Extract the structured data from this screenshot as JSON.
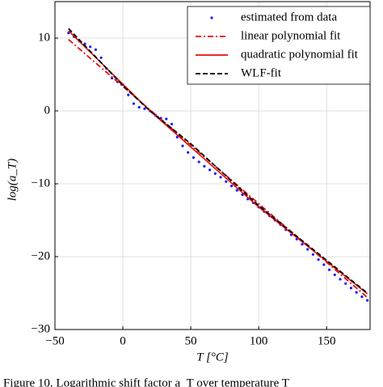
{
  "chart_data": {
    "type": "line",
    "xlabel": "T [°C]",
    "ylabel": "log(a_T)",
    "caption": "Figure 10. Logarithmic shift factor a_T over temperature T",
    "xlim": [
      -50,
      182
    ],
    "ylim": [
      -30,
      15
    ],
    "xticks": [
      {
        "value": -50,
        "label": "−50"
      },
      0,
      50,
      100,
      150
    ],
    "yticks": [
      {
        "value": -30,
        "label": "−30"
      },
      {
        "value": -20,
        "label": "−20"
      },
      {
        "value": -10,
        "label": "−10"
      },
      0,
      10
    ],
    "grid": true,
    "legend": "upper right",
    "series": [
      {
        "name": "estimated from data",
        "color": "#1a1aff",
        "style": "dots",
        "x": [
          -40,
          -36,
          -32,
          -28,
          -24,
          -20,
          -16,
          -12,
          -8,
          -4,
          0,
          4,
          8,
          12,
          16,
          20,
          24,
          28,
          32,
          36,
          40,
          44,
          48,
          52,
          56,
          60,
          64,
          68,
          72,
          76,
          80,
          84,
          88,
          92,
          96,
          100,
          104,
          108,
          112,
          116,
          120,
          124,
          128,
          132,
          136,
          140,
          144,
          148,
          152,
          156,
          160,
          164,
          168,
          172,
          176,
          180
        ],
        "values": [
          10.7,
          10.2,
          9.6,
          9.2,
          8.8,
          8.4,
          7.3,
          5.8,
          4.5,
          4.0,
          3.6,
          2.2,
          1.0,
          0.5,
          0.3,
          0,
          -0.6,
          -1.0,
          -1.1,
          -1.8,
          -3.6,
          -4.8,
          -5.7,
          -6.4,
          -7.0,
          -7.6,
          -8.1,
          -8.6,
          -9.1,
          -9.7,
          -10.3,
          -10.9,
          -11.5,
          -12.1,
          -12.6,
          -13.2,
          -13.8,
          -14.4,
          -15.0,
          -15.6,
          -16.3,
          -17.0,
          -17.6,
          -18.3,
          -19.0,
          -19.7,
          -20.4,
          -21.1,
          -21.8,
          -22.5,
          -23.1,
          -23.7,
          -24.3,
          -24.9,
          -25.5,
          -26.0
        ]
      },
      {
        "name": "linear polynomial fit",
        "color": "#e01010",
        "style": "dashdot",
        "x": [
          -40,
          180
        ],
        "values": [
          9.8,
          -25.6
        ]
      },
      {
        "name": "quadratic polynomial fit",
        "color": "#e01010",
        "style": "solid",
        "x": [
          -40,
          20,
          100,
          180
        ],
        "values": [
          11.0,
          0,
          -13.2,
          -25.1
        ]
      },
      {
        "name": "WLF-fit",
        "color": "#000000",
        "style": "dashed",
        "x": [
          -40,
          0,
          20,
          50,
          100,
          180
        ],
        "values": [
          11.3,
          3.5,
          0,
          -4.5,
          -13.0,
          -25.0
        ]
      }
    ]
  }
}
